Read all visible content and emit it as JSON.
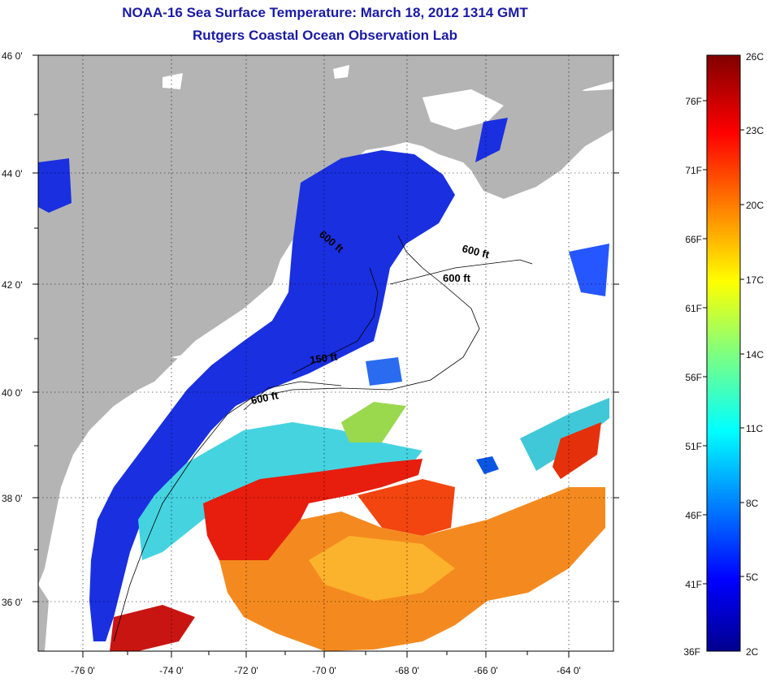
{
  "title": "NOAA-16 Sea Surface Temperature:  March 18, 2012 1314 GMT",
  "subtitle": "Rutgers Coastal Ocean Observation Lab",
  "map": {
    "lon_labels": [
      "-76 0'",
      "-74 0'",
      "-72 0'",
      "-70 0'",
      "-68 0'",
      "-66 0'",
      "-64 0'"
    ],
    "lat_labels": [
      "46 0'",
      "44 0'",
      "42 0'",
      "40 0'",
      "38 0'",
      "36 0'"
    ],
    "lon_range": [
      -77,
      -63
    ],
    "lat_range": [
      35,
      46
    ],
    "isobaths": [
      "600 ft",
      "600 ft",
      "600 ft",
      "150 ft",
      "600 ft"
    ]
  },
  "colorbar": {
    "celsius_labels": [
      "26C",
      "23C",
      "20C",
      "17C",
      "14C",
      "11C",
      "8C",
      "5C",
      "2C"
    ],
    "fahrenheit_labels": [
      "76F",
      "71F",
      "66F",
      "61F",
      "56F",
      "51F",
      "46F",
      "41F",
      "36F"
    ],
    "range_c": [
      2,
      26
    ]
  },
  "colors": {
    "land": "#b4b4b4",
    "title": "#1a1aa6",
    "cold": "#0000cd",
    "warm": "#e10000"
  }
}
